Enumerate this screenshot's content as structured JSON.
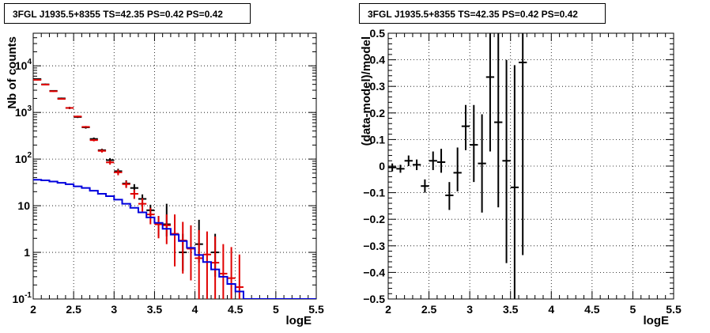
{
  "titles": {
    "left": "3FGL J1935.5+8355 TS=42.35 PS=0.42 PS=0.42",
    "right": "3FGL J1935.5+8355 TS=42.35 PS=0.42 PS=0.42"
  },
  "colors": {
    "data": "#000000",
    "model_total": "#e00000",
    "model_source": "#0000dd",
    "grid": "#000000"
  },
  "chart_data": [
    {
      "type": "scatter",
      "xlabel": "logE",
      "ylabel": "Nb of counts",
      "xlim": [
        2,
        5.5
      ],
      "ylim": [
        0.1,
        50000
      ],
      "yscale": "log",
      "grid": true,
      "xticks": [
        "2",
        "2.5",
        "3",
        "3.5",
        "4",
        "4.5",
        "5",
        "5.5"
      ],
      "yticks": [
        {
          "v": 0.1,
          "t": "10",
          "e": "-1"
        },
        {
          "v": 1,
          "t": "1",
          "e": ""
        },
        {
          "v": 10,
          "t": "10",
          "e": ""
        },
        {
          "v": 100,
          "t": "10",
          "e": "2"
        },
        {
          "v": 1000,
          "t": "10",
          "e": "3"
        },
        {
          "v": 10000,
          "t": "10",
          "e": "4"
        }
      ],
      "series": [
        {
          "style": "points",
          "color": "#000000",
          "points": [
            {
              "x": 2.05,
              "y": 5200,
              "lo": 5000,
              "hi": 5400
            },
            {
              "x": 2.15,
              "y": 4000,
              "lo": 3850,
              "hi": 4150
            },
            {
              "x": 2.25,
              "y": 2900,
              "lo": 2800,
              "hi": 3000
            },
            {
              "x": 2.35,
              "y": 2000,
              "lo": 1920,
              "hi": 2080
            },
            {
              "x": 2.45,
              "y": 1250,
              "lo": 1180,
              "hi": 1320
            },
            {
              "x": 2.55,
              "y": 800,
              "lo": 760,
              "hi": 840
            },
            {
              "x": 2.65,
              "y": 480,
              "lo": 450,
              "hi": 510
            },
            {
              "x": 2.75,
              "y": 270,
              "lo": 250,
              "hi": 290
            },
            {
              "x": 2.85,
              "y": 155,
              "lo": 143,
              "hi": 167
            },
            {
              "x": 2.95,
              "y": 95,
              "lo": 85,
              "hi": 105
            },
            {
              "x": 3.05,
              "y": 55,
              "lo": 48,
              "hi": 62
            },
            {
              "x": 3.15,
              "y": 30,
              "lo": 25,
              "hi": 35
            },
            {
              "x": 3.25,
              "y": 24,
              "lo": 19,
              "hi": 29
            },
            {
              "x": 3.35,
              "y": 14,
              "lo": 10.5,
              "hi": 17.5
            },
            {
              "x": 3.45,
              "y": 8,
              "lo": 5.5,
              "hi": 10.5
            },
            {
              "x": 3.55,
              "y": 4,
              "lo": 2.2,
              "hi": 6
            },
            {
              "x": 3.65,
              "y": 4,
              "lo": 2.2,
              "hi": 11
            },
            {
              "x": 3.85,
              "y": 1,
              "lo": 0.4,
              "hi": 2.5
            },
            {
              "x": 4.05,
              "y": 1.5,
              "lo": 0.6,
              "hi": 5
            },
            {
              "x": 4.25,
              "y": 1,
              "lo": 0.3,
              "hi": 2.5
            }
          ]
        },
        {
          "style": "points",
          "color": "#e00000",
          "points": [
            {
              "x": 2.05,
              "y": 5000,
              "lo": 4850,
              "hi": 5150
            },
            {
              "x": 2.15,
              "y": 3950,
              "lo": 3800,
              "hi": 4100
            },
            {
              "x": 2.25,
              "y": 2850,
              "lo": 2750,
              "hi": 2950
            },
            {
              "x": 2.35,
              "y": 1950,
              "lo": 1880,
              "hi": 2020
            },
            {
              "x": 2.45,
              "y": 1250,
              "lo": 1200,
              "hi": 1300
            },
            {
              "x": 2.55,
              "y": 820,
              "lo": 790,
              "hi": 850
            },
            {
              "x": 2.65,
              "y": 490,
              "lo": 470,
              "hi": 510
            },
            {
              "x": 2.75,
              "y": 255,
              "lo": 240,
              "hi": 270
            },
            {
              "x": 2.85,
              "y": 150,
              "lo": 138,
              "hi": 162
            },
            {
              "x": 2.95,
              "y": 85,
              "lo": 76,
              "hi": 94
            },
            {
              "x": 3.05,
              "y": 52,
              "lo": 45,
              "hi": 59
            },
            {
              "x": 3.15,
              "y": 29,
              "lo": 24,
              "hi": 34
            },
            {
              "x": 3.25,
              "y": 18,
              "lo": 14,
              "hi": 22
            },
            {
              "x": 3.35,
              "y": 11,
              "lo": 7.5,
              "hi": 14.5
            },
            {
              "x": 3.45,
              "y": 6.5,
              "lo": 4,
              "hi": 9
            },
            {
              "x": 3.55,
              "y": 4,
              "lo": 2,
              "hi": 6
            },
            {
              "x": 3.65,
              "y": 3.8,
              "lo": 1.5,
              "hi": 6.5
            },
            {
              "x": 3.75,
              "y": 2.5,
              "lo": 0.5,
              "hi": 6.5
            },
            {
              "x": 3.85,
              "y": 1.8,
              "lo": 0.35,
              "hi": 4.5
            },
            {
              "x": 3.95,
              "y": 1.2,
              "lo": 0.25,
              "hi": 3.8
            },
            {
              "x": 4.05,
              "y": 0.75,
              "lo": 0.1,
              "hi": 3
            },
            {
              "x": 4.15,
              "y": 0.9,
              "lo": 0.1,
              "hi": 2.8
            },
            {
              "x": 4.25,
              "y": 0.6,
              "lo": 0.1,
              "hi": 2.2
            },
            {
              "x": 4.35,
              "y": 0.35,
              "lo": 0.1,
              "hi": 1.5
            },
            {
              "x": 4.45,
              "y": 0.28,
              "lo": 0.1,
              "hi": 1.3
            },
            {
              "x": 4.55,
              "y": 0.18,
              "lo": 0.1,
              "hi": 0.9
            }
          ]
        },
        {
          "style": "step",
          "color": "#0000dd",
          "xstep": 0.1,
          "points": [
            {
              "x": 2.05,
              "y": 36
            },
            {
              "x": 2.15,
              "y": 35
            },
            {
              "x": 2.25,
              "y": 33
            },
            {
              "x": 2.35,
              "y": 31
            },
            {
              "x": 2.45,
              "y": 29
            },
            {
              "x": 2.55,
              "y": 26
            },
            {
              "x": 2.65,
              "y": 24
            },
            {
              "x": 2.75,
              "y": 21
            },
            {
              "x": 2.85,
              "y": 18
            },
            {
              "x": 2.95,
              "y": 16
            },
            {
              "x": 3.05,
              "y": 13.5
            },
            {
              "x": 3.15,
              "y": 11
            },
            {
              "x": 3.25,
              "y": 9
            },
            {
              "x": 3.35,
              "y": 7.2
            },
            {
              "x": 3.45,
              "y": 5.6
            },
            {
              "x": 3.55,
              "y": 4.3
            },
            {
              "x": 3.65,
              "y": 3.2
            },
            {
              "x": 3.75,
              "y": 2.4
            },
            {
              "x": 3.85,
              "y": 1.75
            },
            {
              "x": 3.95,
              "y": 1.25
            },
            {
              "x": 4.05,
              "y": 0.88
            },
            {
              "x": 4.15,
              "y": 0.62
            },
            {
              "x": 4.25,
              "y": 0.43
            },
            {
              "x": 4.35,
              "y": 0.3
            },
            {
              "x": 4.45,
              "y": 0.21
            },
            {
              "x": 4.55,
              "y": 0.145
            },
            {
              "x": 4.65,
              "y": 0.1
            },
            {
              "x": 4.75,
              "y": 0.1
            },
            {
              "x": 4.85,
              "y": 0.1
            },
            {
              "x": 4.95,
              "y": 0.1
            },
            {
              "x": 5.05,
              "y": 0.1
            },
            {
              "x": 5.15,
              "y": 0.1
            },
            {
              "x": 5.25,
              "y": 0.1
            },
            {
              "x": 5.35,
              "y": 0.1
            },
            {
              "x": 5.45,
              "y": 0.1
            }
          ]
        }
      ]
    },
    {
      "type": "scatter",
      "xlabel": "logE",
      "ylabel": "(data-model)/model",
      "xlim": [
        2,
        5.5
      ],
      "ylim": [
        -0.5,
        0.5
      ],
      "yscale": "linear",
      "grid": true,
      "xticks": [
        "2",
        "2.5",
        "3",
        "3.5",
        "4",
        "4.5",
        "5",
        "5.5"
      ],
      "yticks": [
        {
          "v": -0.5,
          "t": "−0.5"
        },
        {
          "v": -0.4,
          "t": "−0.4"
        },
        {
          "v": -0.3,
          "t": "−0.3"
        },
        {
          "v": -0.2,
          "t": "−0.2"
        },
        {
          "v": -0.1,
          "t": "−0.1"
        },
        {
          "v": 0,
          "t": "0"
        },
        {
          "v": 0.1,
          "t": "0.1"
        },
        {
          "v": 0.2,
          "t": "0.2"
        },
        {
          "v": 0.3,
          "t": "0.3"
        },
        {
          "v": 0.4,
          "t": "0.4"
        },
        {
          "v": 0.5,
          "t": "0.5"
        }
      ],
      "series": [
        {
          "style": "points",
          "color": "#000000",
          "points": [
            {
              "x": 2.05,
              "y": -0.005,
              "lo": -0.02,
              "hi": 0.01
            },
            {
              "x": 2.15,
              "y": -0.01,
              "lo": -0.025,
              "hi": 0.005
            },
            {
              "x": 2.25,
              "y": 0.02,
              "lo": 0.0,
              "hi": 0.04
            },
            {
              "x": 2.35,
              "y": 0.005,
              "lo": -0.015,
              "hi": 0.025
            },
            {
              "x": 2.45,
              "y": -0.075,
              "lo": -0.1,
              "hi": -0.05
            },
            {
              "x": 2.55,
              "y": 0.02,
              "lo": -0.015,
              "hi": 0.055
            },
            {
              "x": 2.65,
              "y": 0.015,
              "lo": -0.025,
              "hi": 0.065
            },
            {
              "x": 2.75,
              "y": -0.11,
              "lo": -0.165,
              "hi": -0.06
            },
            {
              "x": 2.85,
              "y": -0.025,
              "lo": -0.095,
              "hi": 0.07
            },
            {
              "x": 2.95,
              "y": 0.15,
              "lo": 0.06,
              "hi": 0.23
            },
            {
              "x": 3.05,
              "y": 0.08,
              "lo": -0.06,
              "hi": 0.23
            },
            {
              "x": 3.15,
              "y": 0.01,
              "lo": -0.175,
              "hi": 0.195
            },
            {
              "x": 3.25,
              "y": 0.335,
              "lo": 0.055,
              "hi": 0.5
            },
            {
              "x": 3.35,
              "y": 0.165,
              "lo": -0.155,
              "hi": 0.5
            },
            {
              "x": 3.45,
              "y": 0.02,
              "lo": -0.365,
              "hi": 0.4
            },
            {
              "x": 3.55,
              "y": -0.08,
              "lo": -0.5,
              "hi": 0.38
            },
            {
              "x": 3.65,
              "y": 0.39,
              "lo": -0.335,
              "hi": 0.5
            }
          ]
        }
      ]
    }
  ]
}
